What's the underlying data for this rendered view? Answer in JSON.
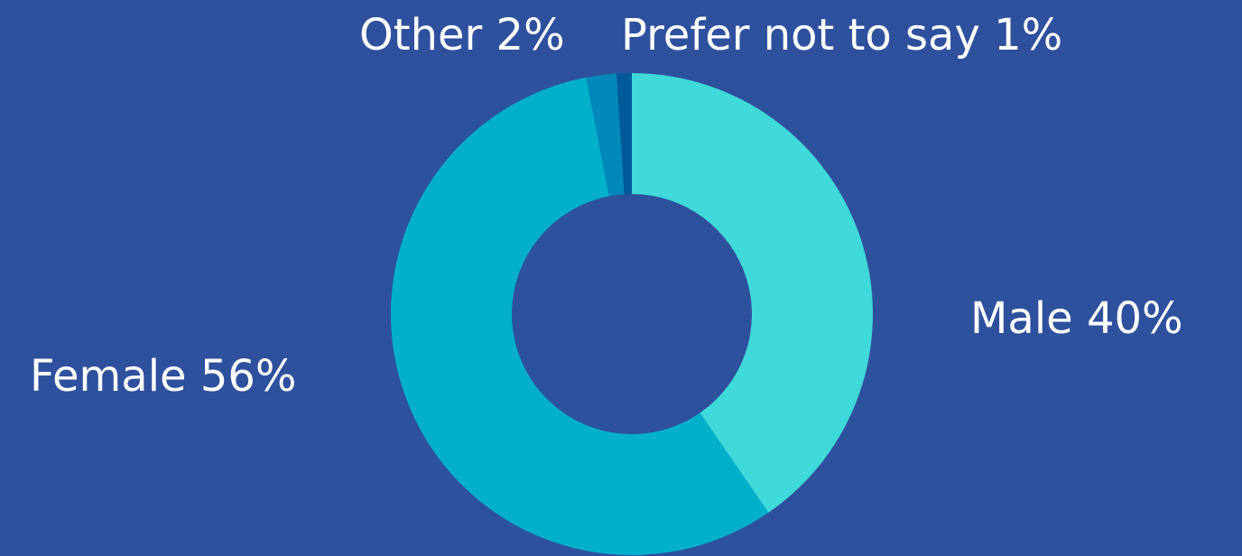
{
  "page": {
    "background_color": "#2e519e"
  },
  "chart_data": {
    "type": "pie",
    "variant": "donut",
    "categories": [
      "Male",
      "Female",
      "Other",
      "Prefer not to say"
    ],
    "values": [
      40,
      56,
      2,
      1
    ],
    "colors": [
      "#3fd9d9",
      "#00b0ca",
      "#0088bb",
      "#005a98"
    ],
    "data_labels": [
      "Male 40%",
      "Female 56%",
      "Other 2%",
      "Prefer not to say 1%"
    ],
    "title": "",
    "legend": "none"
  }
}
